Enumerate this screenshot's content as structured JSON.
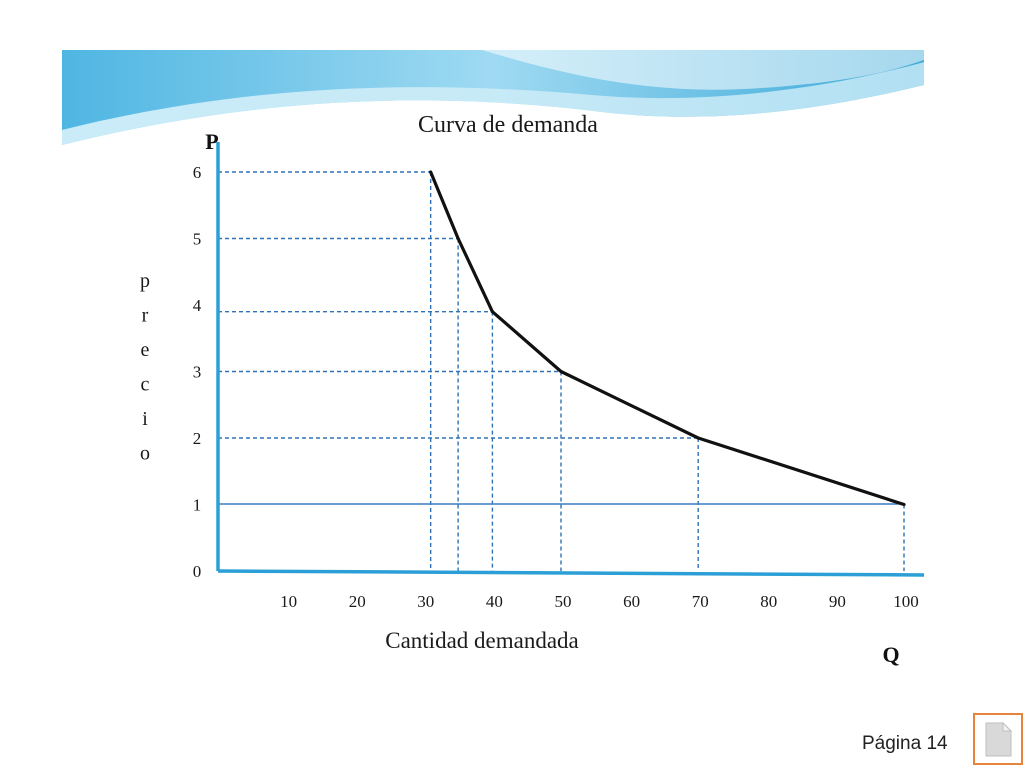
{
  "chart_data": {
    "type": "line",
    "title": "Curva de demanda",
    "xlabel": "Cantidad demandada",
    "ylabel": "precio",
    "x_axis_letter": "Q",
    "y_axis_letter": "P",
    "xlim": [
      0,
      100
    ],
    "ylim": [
      0,
      6
    ],
    "x_ticks": [
      "10",
      "20",
      "30",
      "40",
      "50",
      "60",
      "70",
      "80",
      "90",
      "100"
    ],
    "y_ticks": [
      "0",
      "1",
      "2",
      "3",
      "4",
      "5",
      "6"
    ],
    "series": [
      {
        "x": [
          31,
          35,
          40,
          50,
          70,
          100
        ],
        "y": [
          6,
          5,
          3.9,
          3,
          2,
          1
        ]
      }
    ],
    "reference_lines": {
      "horizontal_solid_at_price": 1,
      "dashed_guides_to_points": true
    },
    "grid": false,
    "legend": "none",
    "colors": {
      "curve": "#111111",
      "axes": "#2b9fd6",
      "guides": "#2e72b8",
      "banner_light": "#bfe6f5",
      "banner_dark": "#3aa8d8"
    }
  },
  "footer": {
    "page_label": "Página 14",
    "page_icon": "document-icon"
  }
}
